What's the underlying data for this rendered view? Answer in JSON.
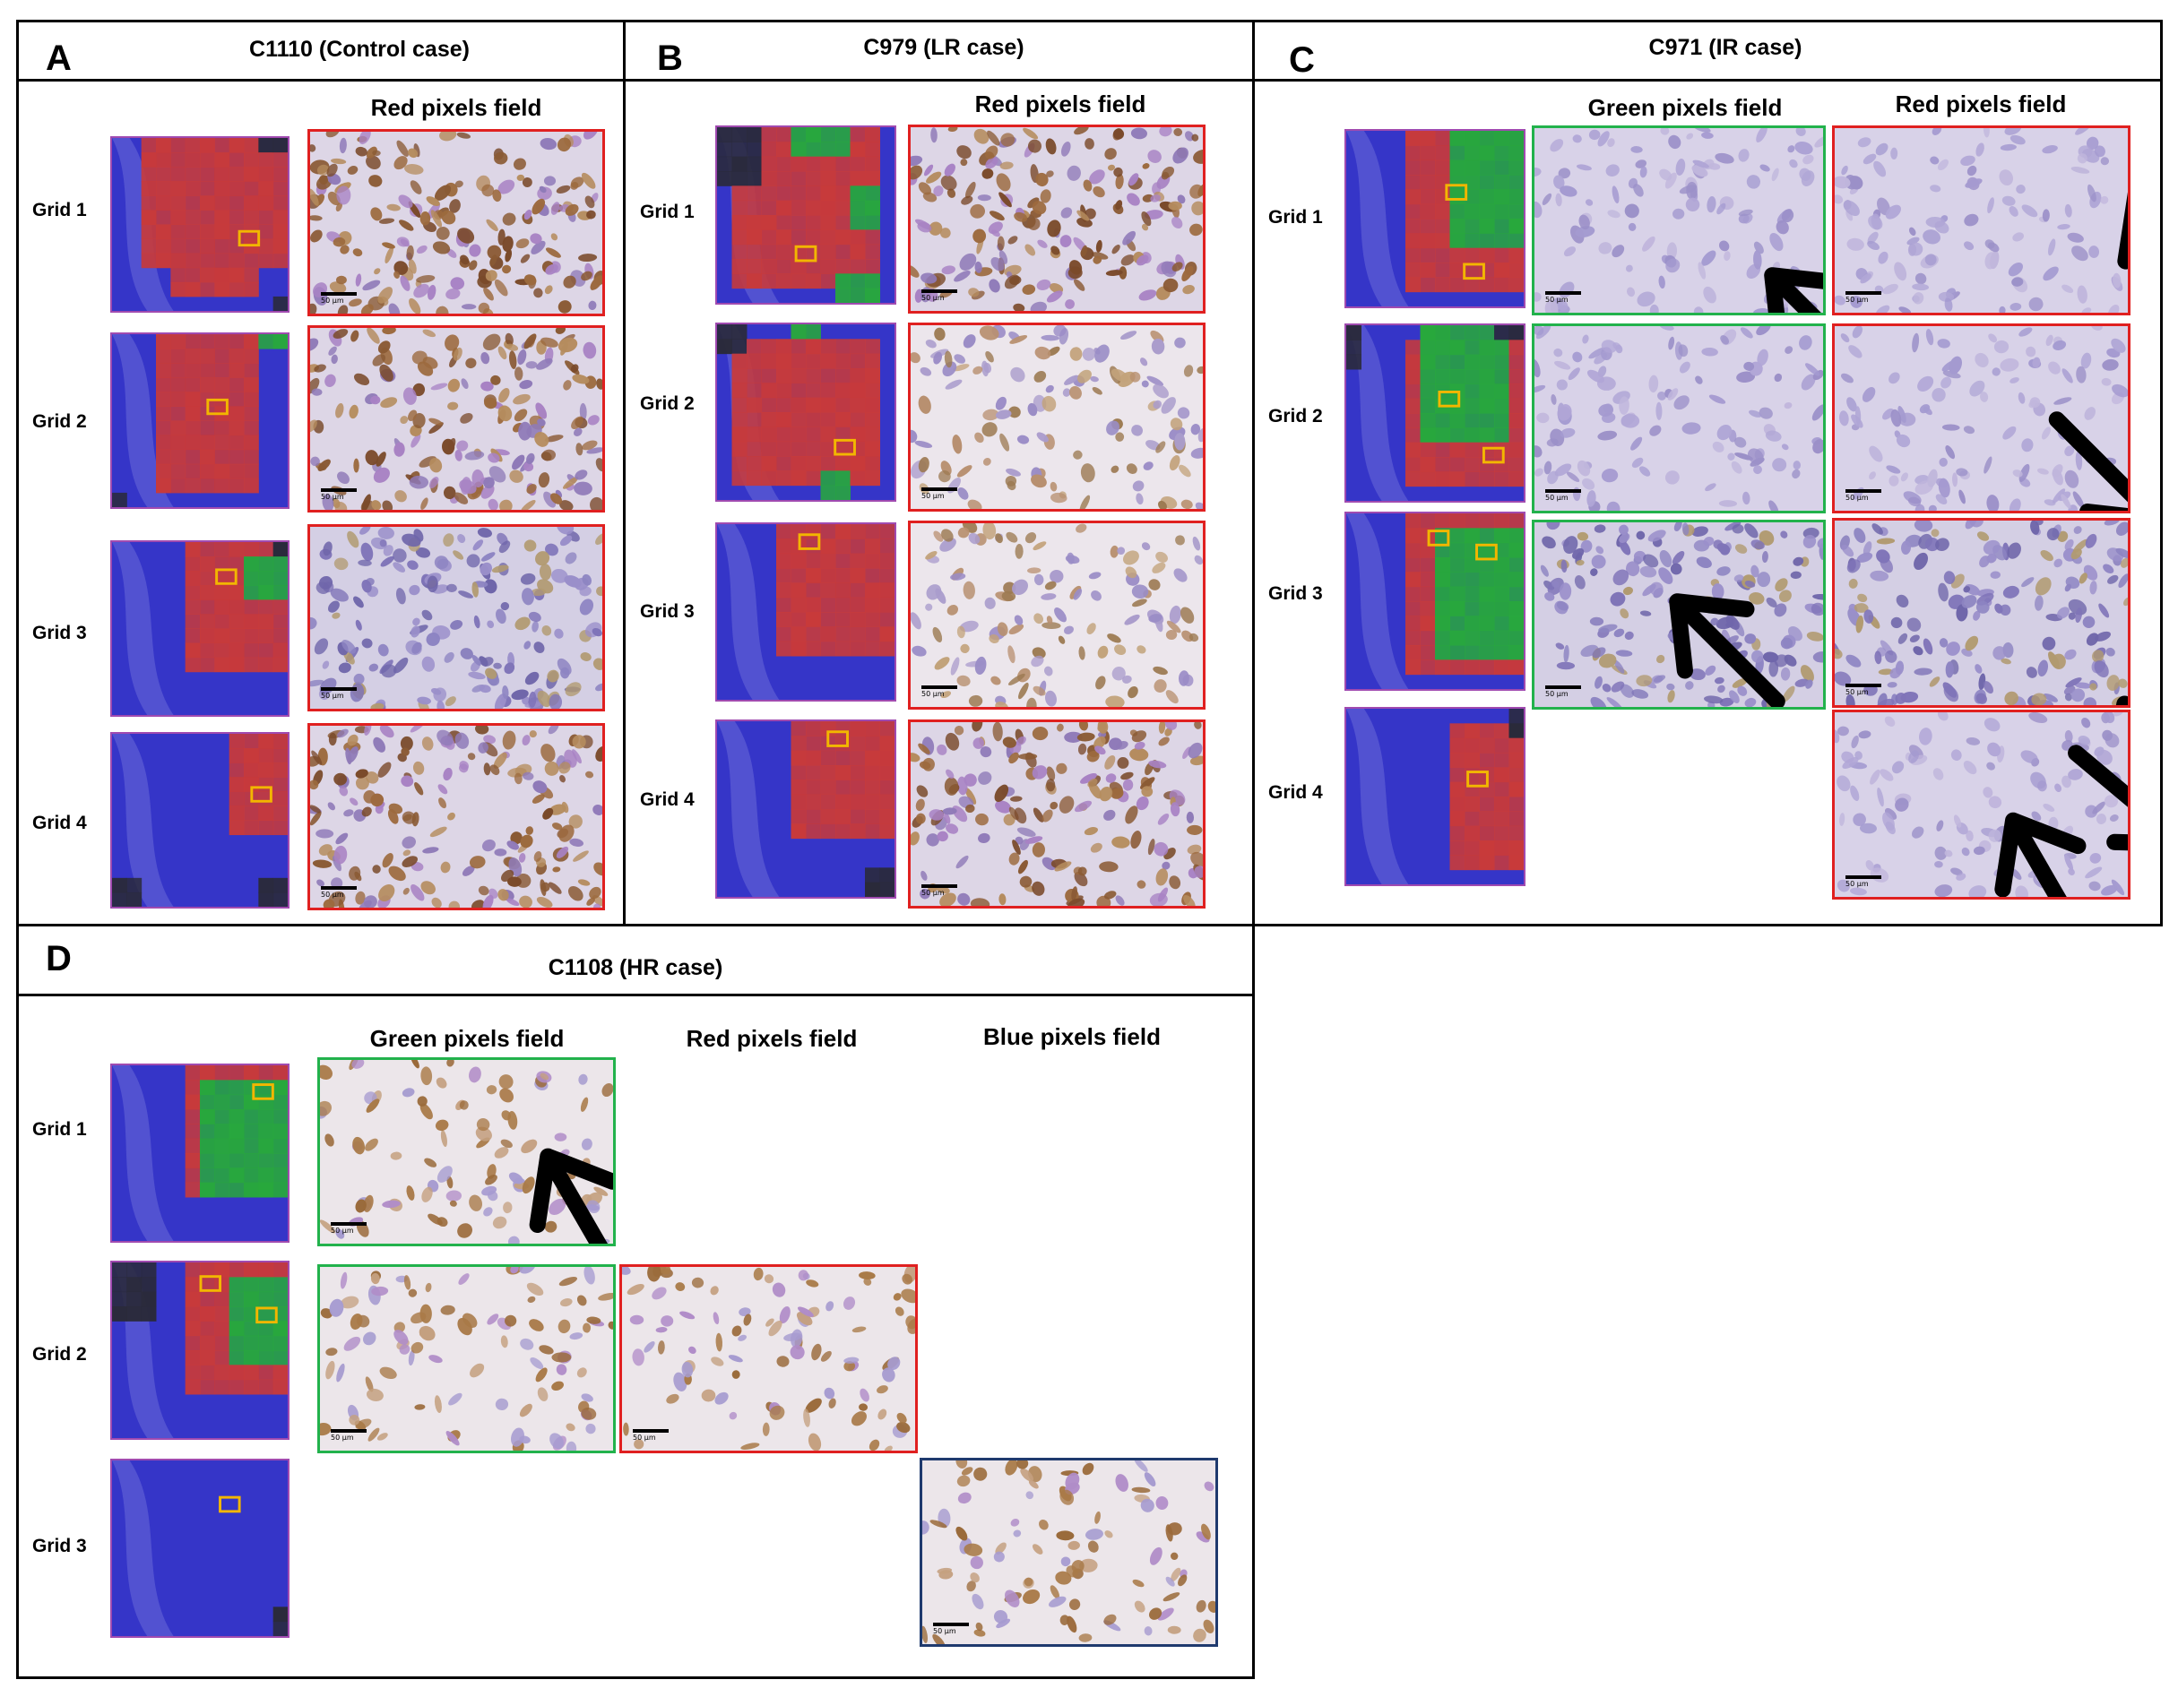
{
  "panels": [
    {
      "letter": "A",
      "title": "C1110 (Control case)"
    },
    {
      "letter": "B",
      "title": "C979 (LR case)"
    },
    {
      "letter": "C",
      "title": "C971 (IR case)"
    },
    {
      "letter": "D",
      "title": "C1108 (HR case)"
    }
  ],
  "columns": {
    "red": "Red pixels field",
    "green": "Green pixels field",
    "blue": "Blue pixels field"
  },
  "grids": [
    "Grid 1",
    "Grid 2",
    "Grid 3",
    "Grid 4"
  ],
  "scale_label": "50 μm",
  "colors": {
    "red_frame": "#e02020",
    "green_frame": "#22b24c",
    "blue_frame": "#1f3a6e",
    "roi_box": "#f2b600",
    "thumb_blue": "#3535c8",
    "thumb_red": "#c83a3a",
    "thumb_green": "#28a83c",
    "tissue_bg": "#d8d0e4"
  }
}
